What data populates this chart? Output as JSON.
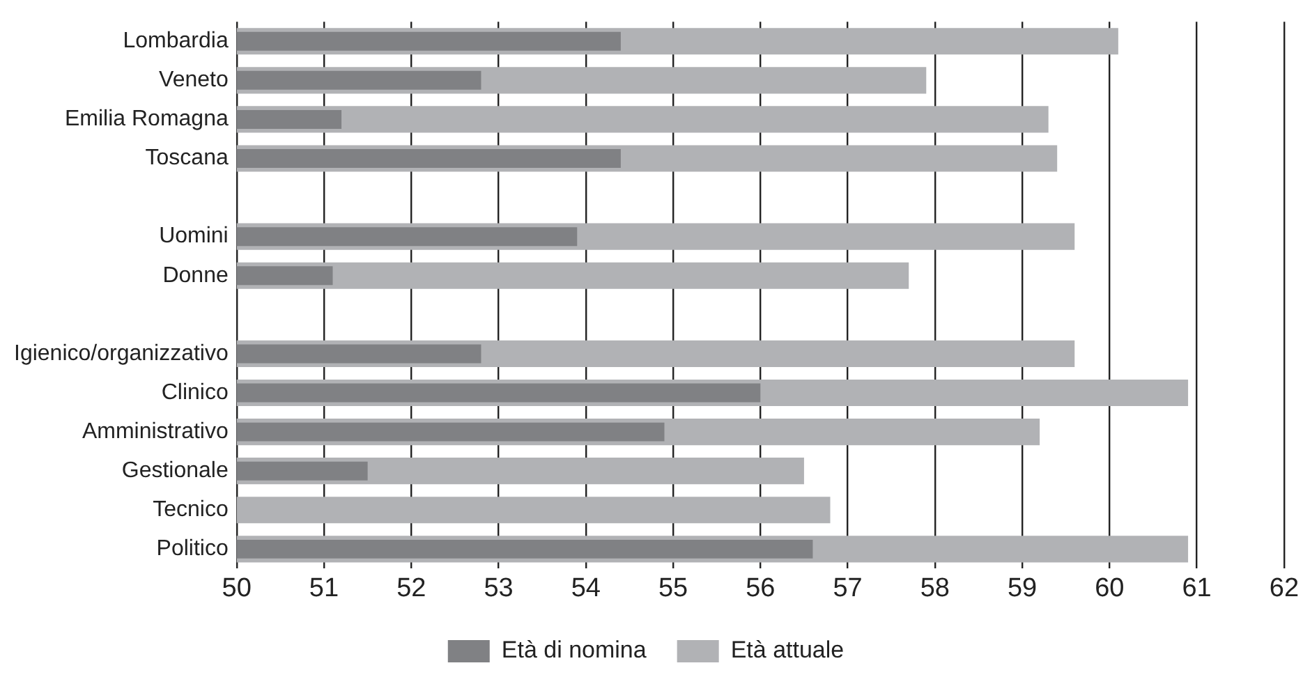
{
  "chart_data": {
    "type": "bar",
    "orientation": "horizontal",
    "categories": [
      "Lombardia",
      "Veneto",
      "Emilia Romagna",
      "Toscana",
      null,
      "Uomini",
      "Donne",
      null,
      "Igienico/organizzativo",
      "Clinico",
      "Amministrativo",
      "Gestionale",
      "Tecnico",
      "Politico"
    ],
    "series": [
      {
        "name": "Età di nomina",
        "color": "#808184",
        "values": [
          54.4,
          52.8,
          51.2,
          54.4,
          null,
          53.9,
          51.1,
          null,
          52.8,
          56.0,
          54.9,
          51.5,
          null,
          56.6
        ]
      },
      {
        "name": "Età attuale",
        "color": "#b1b2b5",
        "values": [
          60.1,
          57.9,
          59.3,
          59.4,
          null,
          59.6,
          57.7,
          null,
          59.6,
          60.9,
          59.2,
          56.5,
          56.8,
          60.9
        ]
      }
    ],
    "xlim": [
      50,
      62
    ],
    "xticks": [
      50,
      51,
      52,
      53,
      54,
      55,
      56,
      57,
      58,
      59,
      60,
      61,
      62
    ],
    "grid": "x",
    "legend": "bottom"
  }
}
